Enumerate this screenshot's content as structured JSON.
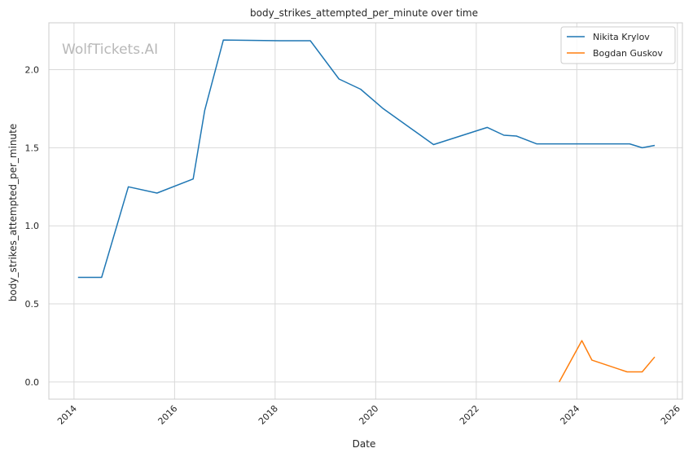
{
  "chart_data": {
    "type": "line",
    "title": "body_strikes_attempted_per_minute over time",
    "xlabel": "Date",
    "ylabel": "body_strikes_attempted_per_minute",
    "watermark": "WolfTickets.AI",
    "xlim": [
      2013.5,
      2026.1
    ],
    "ylim": [
      -0.11,
      2.3
    ],
    "xticks": [
      2014,
      2016,
      2018,
      2020,
      2022,
      2024,
      2026
    ],
    "xtick_labels": [
      "2014",
      "2016",
      "2018",
      "2020",
      "2022",
      "2024",
      "2026"
    ],
    "yticks": [
      0.0,
      0.5,
      1.0,
      1.5,
      2.0
    ],
    "ytick_labels": [
      "0.0",
      "0.5",
      "1.0",
      "1.5",
      "2.0"
    ],
    "grid": true,
    "legend_position": "top-right",
    "series": [
      {
        "name": "Nikita Krylov",
        "color": "#1f77b4",
        "x": [
          2014.08,
          2014.55,
          2015.08,
          2015.65,
          2016.37,
          2016.6,
          2016.97,
          2018.1,
          2018.7,
          2019.27,
          2019.7,
          2020.15,
          2021.15,
          2022.22,
          2022.55,
          2022.8,
          2023.2,
          2024.2,
          2025.05,
          2025.3,
          2025.55
        ],
        "y": [
          0.67,
          0.67,
          1.25,
          1.21,
          1.3,
          1.74,
          2.19,
          2.185,
          2.185,
          1.94,
          1.875,
          1.75,
          1.52,
          1.63,
          1.58,
          1.575,
          1.525,
          1.525,
          1.525,
          1.5,
          1.515
        ]
      },
      {
        "name": "Bogdan Guskov",
        "color": "#ff7f0e",
        "x": [
          2023.65,
          2024.1,
          2024.3,
          2025.0,
          2025.3,
          2025.55
        ],
        "y": [
          0.0,
          0.265,
          0.14,
          0.065,
          0.065,
          0.16
        ]
      }
    ]
  }
}
